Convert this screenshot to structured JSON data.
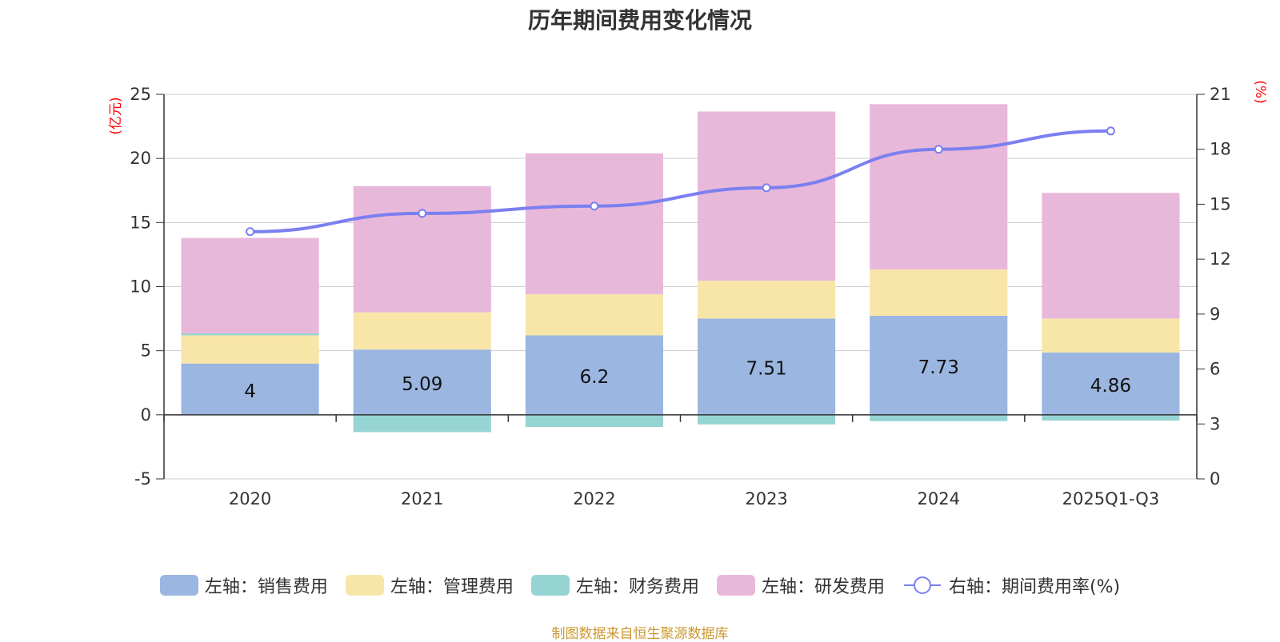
{
  "chart_data": {
    "type": "bar",
    "stacked": true,
    "title": "历年期间费用变化情况",
    "categories": [
      "2020",
      "2021",
      "2022",
      "2023",
      "2024",
      "2025Q1-Q3"
    ],
    "left_axis": {
      "unit": "(亿元)",
      "min": -5,
      "max": 25,
      "ticks": [
        -5,
        0,
        5,
        10,
        15,
        20,
        25
      ]
    },
    "right_axis": {
      "unit": "(%)",
      "min": 0,
      "max": 21,
      "ticks": [
        0,
        3,
        6,
        9,
        12,
        15,
        18,
        21
      ]
    },
    "series": [
      {
        "name": "左轴：销售费用",
        "axis": "left",
        "kind": "bar",
        "color": "#9bb6e0",
        "values": [
          4.0,
          5.09,
          6.2,
          7.51,
          7.73,
          4.86
        ],
        "show_labels": true
      },
      {
        "name": "左轴：管理费用",
        "axis": "left",
        "kind": "bar",
        "color": "#f8e6a8",
        "values": [
          2.2,
          2.9,
          3.2,
          2.95,
          3.6,
          2.65
        ]
      },
      {
        "name": "左轴：财务费用",
        "axis": "left",
        "kind": "bar",
        "color": "#96d4d4",
        "values": [
          0.15,
          -1.35,
          -0.95,
          -0.75,
          -0.5,
          -0.45
        ]
      },
      {
        "name": "左轴：研发费用",
        "axis": "left",
        "kind": "bar",
        "color": "#e8b8da",
        "values": [
          7.45,
          9.85,
          11.0,
          13.2,
          12.9,
          9.8
        ]
      },
      {
        "name": "右轴：期间费用率(%)",
        "axis": "right",
        "kind": "line",
        "color": "#7b7ff0",
        "values": [
          13.5,
          14.5,
          14.9,
          15.9,
          18.0,
          19.0
        ]
      }
    ]
  },
  "source_text": "制图数据来自恒生聚源数据库"
}
